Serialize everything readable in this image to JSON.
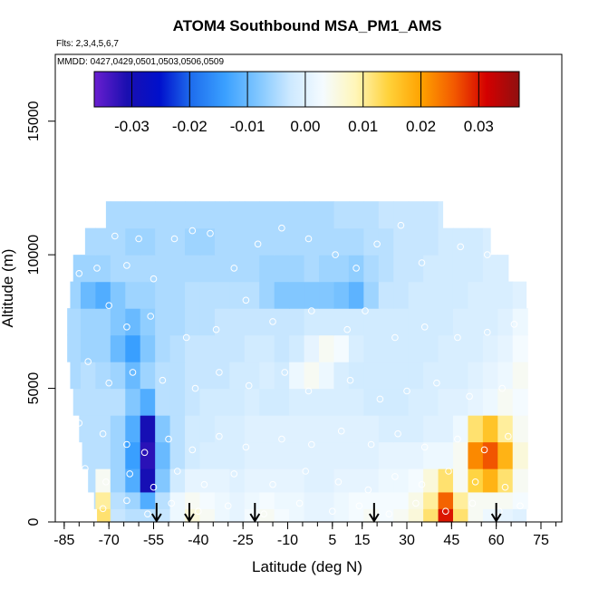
{
  "chart_data": {
    "type": "heatmap",
    "title": "ATOM4 Southbound MSA_PM1_AMS",
    "subtitle_flights": "Flts: 2,3,4,5,6,7",
    "subtitle_dates": "MMDD: 0427,0429,0501,0503,0506,0509",
    "xlabel": "Latitude (deg N)",
    "ylabel": "Altitude (m)",
    "xlim": [
      -88,
      82
    ],
    "ylim": [
      0,
      17500
    ],
    "x_ticks": [
      -85,
      -70,
      -55,
      -40,
      -25,
      -10,
      5,
      15,
      30,
      45,
      60,
      75
    ],
    "x_tick_labels": [
      "-85",
      "-70",
      "-55",
      "-40",
      "-25",
      "-10",
      "5",
      "15",
      "30",
      "45",
      "60",
      "75"
    ],
    "y_ticks": [
      0,
      5000,
      10000,
      15000
    ],
    "y_tick_labels": [
      "0",
      "5000",
      "10000",
      "15000"
    ],
    "colorbar": {
      "min": -0.0365,
      "max": 0.037,
      "ticks": [
        -0.03,
        -0.02,
        -0.01,
        0.0,
        0.01,
        0.02,
        0.03
      ],
      "tick_labels": [
        "-0.03",
        "-0.02",
        "-0.01",
        "0.00",
        "0.01",
        "0.02",
        "0.03"
      ],
      "colors": [
        "#6a1fd0",
        "#1a0fb0",
        "#0010cc",
        "#1f6fee",
        "#3aa0ff",
        "#7fc6ff",
        "#cde9ff",
        "#f5fbff",
        "#fff6b8",
        "#ffd23a",
        "#ffa200",
        "#f35a00",
        "#d40000",
        "#8f1010"
      ]
    },
    "profile_latitudes": [
      -54,
      -43,
      -21,
      19,
      60
    ],
    "field": {
      "x": [
        -82,
        -77,
        -72,
        -67,
        -62,
        -57,
        -52,
        -47,
        -42,
        -37,
        -32,
        -27,
        -22,
        -17,
        -12,
        -7,
        -2,
        3,
        8,
        13,
        18,
        23,
        28,
        33,
        38,
        43,
        48,
        53,
        58,
        63,
        68
      ],
      "y": [
        250,
        750,
        1500,
        2500,
        3500,
        4500,
        5500,
        6500,
        7500,
        8500,
        9500,
        10500,
        11500
      ],
      "extent": [
        [
          -74,
          70
        ],
        [
          -75,
          71
        ],
        [
          -77,
          71
        ],
        [
          -79,
          71
        ],
        [
          -80,
          71
        ],
        [
          -82,
          71
        ],
        [
          -83,
          71
        ],
        [
          -84,
          71
        ],
        [
          -84,
          71
        ],
        [
          -83,
          70
        ],
        [
          -82,
          64
        ],
        [
          -78,
          58
        ],
        [
          -71,
          42
        ]
      ],
      "values": [
        [
          -0.004,
          -0.004,
          0.012,
          -0.003,
          -0.004,
          -0.004,
          -0.003,
          0.002,
          0.006,
          0.004,
          0.002,
          0.001,
          0.003,
          0.004,
          0.003,
          0.002,
          0.001,
          0.001,
          0.002,
          0.003,
          0.004,
          0.003,
          0.004,
          0.006,
          0.012,
          0.03,
          0.012,
          0.004,
          0.002,
          0.001,
          0.0
        ],
        [
          -0.004,
          -0.004,
          0.01,
          -0.004,
          -0.006,
          -0.012,
          -0.004,
          0.002,
          0.004,
          0.003,
          0.002,
          0.001,
          0.002,
          0.003,
          0.002,
          0.002,
          0.001,
          0.001,
          0.002,
          0.003,
          0.003,
          0.003,
          0.003,
          0.005,
          0.01,
          0.025,
          0.01,
          0.004,
          0.004,
          0.004,
          0.003
        ],
        [
          -0.004,
          -0.004,
          0.004,
          -0.006,
          -0.012,
          -0.03,
          -0.008,
          -0.002,
          0.001,
          0.001,
          0.001,
          0.0,
          0.001,
          0.001,
          0.001,
          0.001,
          0.0,
          0.0,
          0.001,
          0.001,
          0.001,
          0.002,
          0.002,
          0.003,
          0.006,
          0.012,
          0.004,
          0.014,
          0.018,
          0.012,
          0.004
        ],
        [
          -0.004,
          -0.004,
          -0.004,
          -0.006,
          -0.014,
          -0.032,
          -0.01,
          -0.004,
          -0.002,
          -0.001,
          -0.001,
          -0.001,
          0.0,
          0.0,
          0.0,
          0.0,
          0.0,
          0.0,
          0.0,
          0.0,
          0.0,
          0.001,
          0.001,
          0.001,
          0.002,
          0.002,
          0.004,
          0.022,
          0.026,
          0.018,
          0.006
        ],
        [
          -0.004,
          -0.004,
          -0.004,
          -0.006,
          -0.012,
          -0.03,
          -0.008,
          -0.004,
          -0.002,
          -0.002,
          -0.001,
          -0.001,
          0.0,
          0.0,
          0.0,
          0.0,
          0.0,
          0.0,
          0.0,
          0.0,
          0.0,
          -0.001,
          -0.001,
          -0.001,
          0.0,
          0.0,
          0.002,
          0.012,
          0.016,
          0.01,
          0.004
        ],
        [
          -0.004,
          -0.004,
          -0.004,
          -0.004,
          -0.008,
          -0.012,
          -0.004,
          -0.004,
          -0.003,
          -0.002,
          -0.002,
          -0.002,
          -0.001,
          -0.002,
          -0.002,
          -0.001,
          -0.001,
          -0.001,
          -0.001,
          -0.001,
          -0.002,
          -0.002,
          -0.002,
          -0.001,
          -0.001,
          0.0,
          0.0,
          0.001,
          0.002,
          0.004,
          0.003
        ],
        [
          -0.005,
          -0.004,
          -0.005,
          -0.006,
          -0.01,
          -0.006,
          -0.004,
          -0.004,
          -0.003,
          -0.003,
          -0.003,
          -0.002,
          -0.002,
          -0.001,
          -0.002,
          0.002,
          0.004,
          0.002,
          -0.001,
          -0.002,
          -0.002,
          -0.002,
          -0.002,
          -0.002,
          -0.001,
          -0.001,
          -0.001,
          0.0,
          0.001,
          0.002,
          0.004
        ],
        [
          -0.005,
          -0.006,
          -0.006,
          -0.01,
          -0.014,
          -0.008,
          -0.005,
          -0.004,
          -0.003,
          -0.003,
          -0.003,
          -0.003,
          -0.002,
          -0.002,
          -0.003,
          -0.002,
          0.001,
          0.004,
          0.003,
          -0.001,
          -0.002,
          -0.002,
          -0.002,
          -0.002,
          -0.002,
          -0.001,
          -0.001,
          -0.001,
          0.0,
          0.001,
          0.003
        ],
        [
          -0.005,
          -0.006,
          -0.006,
          -0.008,
          -0.01,
          -0.007,
          -0.005,
          -0.005,
          -0.004,
          -0.004,
          -0.003,
          -0.003,
          -0.003,
          -0.003,
          -0.003,
          -0.003,
          -0.002,
          -0.002,
          -0.002,
          -0.002,
          -0.002,
          -0.002,
          -0.002,
          -0.002,
          -0.002,
          -0.002,
          -0.001,
          -0.001,
          -0.001,
          0.0,
          0.002
        ],
        [
          -0.006,
          -0.01,
          -0.012,
          -0.008,
          -0.006,
          -0.006,
          -0.005,
          -0.005,
          -0.004,
          -0.004,
          -0.004,
          -0.004,
          -0.004,
          -0.006,
          -0.008,
          -0.008,
          -0.008,
          -0.008,
          -0.009,
          -0.011,
          -0.006,
          -0.003,
          -0.003,
          -0.002,
          -0.002,
          -0.002,
          -0.002,
          -0.001,
          -0.001,
          -0.001,
          0.0
        ],
        [
          -0.006,
          -0.006,
          -0.006,
          -0.005,
          -0.005,
          -0.005,
          -0.005,
          -0.005,
          -0.005,
          -0.005,
          -0.005,
          -0.005,
          -0.005,
          -0.006,
          -0.006,
          -0.006,
          -0.005,
          -0.006,
          -0.006,
          -0.007,
          -0.005,
          -0.004,
          -0.003,
          -0.003,
          -0.002,
          -0.002,
          -0.002,
          -0.002,
          -0.001,
          -0.001,
          0.0
        ],
        [
          -0.005,
          -0.005,
          -0.005,
          -0.005,
          -0.006,
          -0.006,
          -0.005,
          -0.005,
          -0.006,
          -0.006,
          -0.005,
          -0.005,
          -0.005,
          -0.005,
          -0.005,
          -0.005,
          -0.005,
          -0.005,
          -0.005,
          -0.005,
          -0.004,
          -0.004,
          -0.003,
          -0.003,
          -0.003,
          -0.002,
          -0.002,
          -0.002,
          -0.001,
          -0.001,
          0.0
        ],
        [
          -0.005,
          -0.005,
          -0.005,
          -0.005,
          -0.005,
          -0.005,
          -0.005,
          -0.005,
          -0.005,
          -0.005,
          -0.005,
          -0.005,
          -0.005,
          -0.005,
          -0.005,
          -0.005,
          -0.005,
          -0.005,
          -0.004,
          -0.004,
          -0.004,
          -0.003,
          -0.003,
          -0.003,
          -0.003,
          -0.002,
          -0.002,
          -0.002,
          -0.002,
          -0.002,
          -0.002
        ]
      ]
    },
    "sample_points": [
      [
        -80,
        9300
      ],
      [
        -74,
        9500
      ],
      [
        -68,
        10700
      ],
      [
        -64,
        9600
      ],
      [
        -60,
        10600
      ],
      [
        -55,
        9100
      ],
      [
        -48,
        10600
      ],
      [
        -42,
        10900
      ],
      [
        -36,
        10800
      ],
      [
        -28,
        9500
      ],
      [
        -20,
        10400
      ],
      [
        -12,
        11000
      ],
      [
        -3,
        10600
      ],
      [
        6,
        10000
      ],
      [
        13,
        9500
      ],
      [
        20,
        10400
      ],
      [
        28,
        11100
      ],
      [
        35,
        9700
      ],
      [
        48,
        10300
      ],
      [
        57,
        10000
      ],
      [
        -70,
        8100
      ],
      [
        -64,
        7300
      ],
      [
        -56,
        7700
      ],
      [
        -44,
        6900
      ],
      [
        -34,
        7200
      ],
      [
        -24,
        8300
      ],
      [
        -15,
        7500
      ],
      [
        -2,
        7900
      ],
      [
        10,
        7200
      ],
      [
        16,
        7900
      ],
      [
        26,
        6900
      ],
      [
        36,
        7300
      ],
      [
        47,
        6900
      ],
      [
        57,
        7100
      ],
      [
        66,
        7400
      ],
      [
        -77,
        6000
      ],
      [
        -70,
        5200
      ],
      [
        -62,
        5600
      ],
      [
        -52,
        5300
      ],
      [
        -41,
        5000
      ],
      [
        -33,
        5600
      ],
      [
        -23,
        5100
      ],
      [
        -11,
        5600
      ],
      [
        -3,
        4900
      ],
      [
        11,
        5300
      ],
      [
        21,
        4600
      ],
      [
        30,
        4900
      ],
      [
        40,
        5200
      ],
      [
        51,
        4700
      ],
      [
        62,
        5000
      ],
      [
        -80,
        3700
      ],
      [
        -72,
        3300
      ],
      [
        -64,
        2900
      ],
      [
        -58,
        2600
      ],
      [
        -50,
        3100
      ],
      [
        -42,
        2700
      ],
      [
        -33,
        3200
      ],
      [
        -24,
        2800
      ],
      [
        -12,
        3100
      ],
      [
        -2,
        2900
      ],
      [
        8,
        3400
      ],
      [
        18,
        2900
      ],
      [
        27,
        3300
      ],
      [
        36,
        2800
      ],
      [
        47,
        3100
      ],
      [
        56,
        2700
      ],
      [
        64,
        3200
      ],
      [
        -78,
        2000
      ],
      [
        -71,
        1500
      ],
      [
        -63,
        1800
      ],
      [
        -55,
        1300
      ],
      [
        -47,
        1900
      ],
      [
        -38,
        1400
      ],
      [
        -28,
        1800
      ],
      [
        -15,
        1400
      ],
      [
        -4,
        1900
      ],
      [
        7,
        1500
      ],
      [
        17,
        1200
      ],
      [
        26,
        1700
      ],
      [
        35,
        1400
      ],
      [
        44,
        1900
      ],
      [
        53,
        1500
      ],
      [
        63,
        1300
      ],
      [
        -72,
        500
      ],
      [
        -64,
        800
      ],
      [
        -57,
        300
      ],
      [
        -49,
        700
      ],
      [
        -40,
        400
      ],
      [
        -30,
        600
      ],
      [
        -18,
        300
      ],
      [
        -6,
        700
      ],
      [
        5,
        400
      ],
      [
        14,
        600
      ],
      [
        24,
        300
      ],
      [
        33,
        700
      ],
      [
        43,
        400
      ],
      [
        52,
        700
      ],
      [
        61,
        400
      ],
      [
        68,
        600
      ]
    ]
  }
}
